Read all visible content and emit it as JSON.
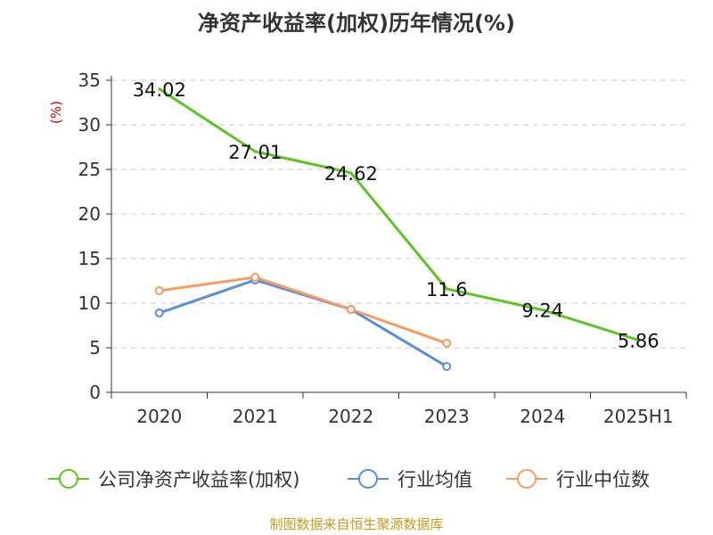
{
  "chart_data": {
    "type": "line",
    "title": "净资产收益率(加权)历年情况(%)",
    "ylabel": "(%)",
    "xlabel": "",
    "categories": [
      "2020",
      "2021",
      "2022",
      "2023",
      "2024",
      "2025H1"
    ],
    "ylim": [
      0,
      35
    ],
    "yticks": [
      0,
      5,
      10,
      15,
      20,
      25,
      30,
      35
    ],
    "grid": "horizontal dashed",
    "legend_position": "bottom",
    "series": [
      {
        "name": "公司净资产收益率(加权)",
        "color": "#5cc424",
        "values": [
          34.02,
          27.01,
          24.62,
          11.6,
          9.24,
          5.86
        ],
        "labels": [
          "34.02",
          "27.01",
          "24.62",
          "11.6",
          "9.24",
          "5.86"
        ],
        "show_labels": true,
        "markers": false
      },
      {
        "name": "行业均值",
        "color": "#5a8de0",
        "values": [
          8.9,
          12.6,
          9.3,
          2.9,
          null,
          null
        ],
        "show_labels": false,
        "markers": true
      },
      {
        "name": "行业中位数",
        "color": "#f79a63",
        "values": [
          11.4,
          12.9,
          9.3,
          5.5,
          null,
          null
        ],
        "show_labels": false,
        "markers": true
      }
    ]
  },
  "source_text": "制图数据来自恒生聚源数据库"
}
